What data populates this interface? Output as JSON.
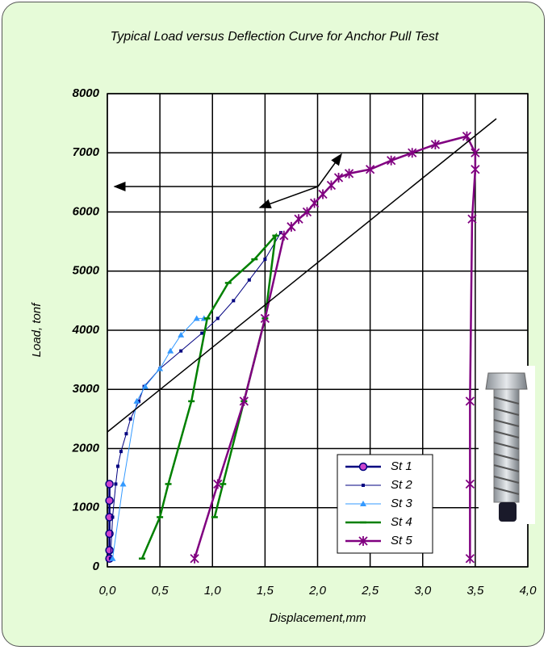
{
  "chart_data": {
    "type": "line",
    "title": "Typical Load versus Deflection Curve for Anchor Pull Test",
    "x_label": "Displacement,mm",
    "y_label": "Load, tonf",
    "xlim": [
      0,
      4
    ],
    "ylim": [
      0,
      8000
    ],
    "xticks": [
      {
        "value": 0,
        "label": "0,0"
      },
      {
        "value": 0.5,
        "label": "0,5"
      },
      {
        "value": 1,
        "label": "1,0"
      },
      {
        "value": 1.5,
        "label": "1,5"
      },
      {
        "value": 2,
        "label": "2,0"
      },
      {
        "value": 2.5,
        "label": "2,5"
      },
      {
        "value": 3,
        "label": "3,0"
      },
      {
        "value": 3.5,
        "label": "3,5"
      },
      {
        "value": 4,
        "label": "4,0"
      }
    ],
    "yticks": [
      0,
      1000,
      2000,
      3000,
      4000,
      5000,
      6000,
      7000,
      8000
    ],
    "grid": true,
    "legend": "lower right",
    "series": [
      {
        "name": "St 1",
        "color": "#000080",
        "marker": "circle",
        "x": [
          0.02,
          0.02,
          0.02,
          0.02,
          0.02,
          0.02
        ],
        "values": [
          140,
          280,
          560,
          840,
          1120,
          1400
        ]
      },
      {
        "name": "St 2",
        "color": "#000080",
        "marker": "square",
        "x": [
          0.03,
          0.05,
          0.08,
          0.1,
          0.13,
          0.18,
          0.22,
          0.3,
          0.35,
          0.5,
          0.7,
          0.9,
          1.05,
          1.2,
          1.35,
          1.5,
          1.65
        ],
        "values": [
          140,
          840,
          1400,
          1700,
          1950,
          2250,
          2500,
          2800,
          3050,
          3350,
          3650,
          3950,
          4200,
          4500,
          4850,
          5200,
          5650
        ]
      },
      {
        "name": "St 3",
        "color": "#3399ff",
        "marker": "triangle",
        "x": [
          0.05,
          0.15,
          0.28,
          0.36,
          0.5,
          0.6,
          0.7,
          0.85,
          0.92
        ],
        "values": [
          140,
          1400,
          2800,
          3050,
          3350,
          3650,
          3920,
          4200,
          4200
        ]
      },
      {
        "name": "St 4",
        "color": "#008000",
        "marker": "dash",
        "x": [
          0.33,
          0.5,
          0.58,
          0.8,
          0.95,
          1.15,
          1.4,
          1.6,
          1.5,
          1.3,
          1.1,
          1.02
        ],
        "values": [
          140,
          840,
          1400,
          2800,
          4200,
          4800,
          5200,
          5600,
          4200,
          2800,
          1400,
          840
        ]
      },
      {
        "name": "St 5",
        "color": "#800080",
        "marker": "star",
        "x": [
          0.83,
          1.05,
          1.3,
          1.5,
          1.68,
          1.75,
          1.82,
          1.9,
          1.97,
          2.05,
          2.13,
          2.2,
          2.3,
          2.5,
          2.7,
          2.9,
          3.12,
          3.42,
          3.5,
          3.5,
          3.47,
          3.45,
          3.45,
          3.45
        ],
        "values": [
          140,
          1400,
          2800,
          4200,
          5600,
          5750,
          5880,
          6000,
          6150,
          6300,
          6450,
          6580,
          6650,
          6720,
          6870,
          7000,
          7140,
          7280,
          7000,
          6720,
          5880,
          2800,
          1400,
          140
        ]
      }
    ]
  }
}
